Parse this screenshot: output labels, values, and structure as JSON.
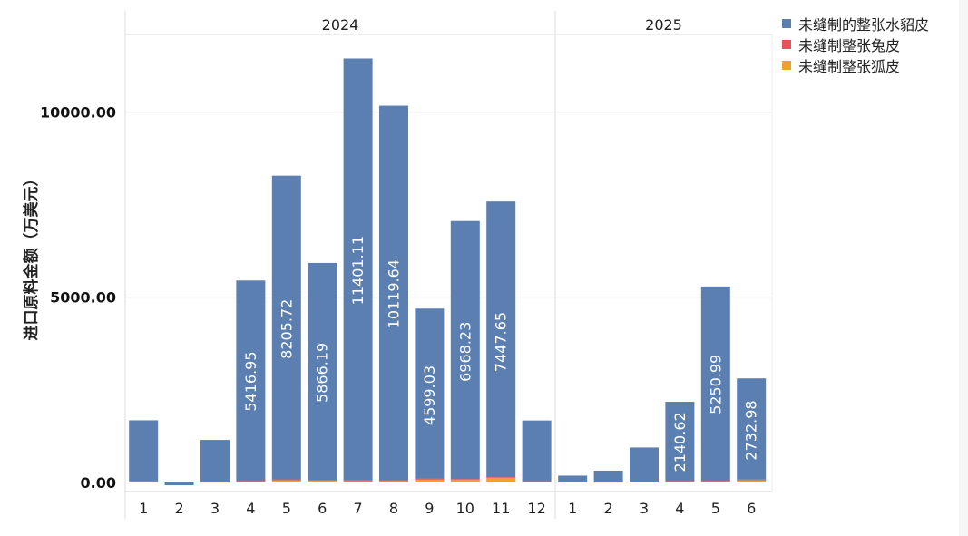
{
  "chart_data": {
    "type": "bar",
    "stacked": true,
    "ylabel": "进口原料金额（万美元）",
    "y_ticks": [
      "10000.00",
      "5000.00",
      "0.00"
    ],
    "y_tick_values": [
      10000,
      5000,
      0
    ],
    "ylim": [
      -250,
      12100
    ],
    "grid": true,
    "legend_position": "top-right",
    "groups": [
      {
        "label": "2024",
        "categories": [
          "1",
          "2",
          "3",
          "4",
          "5",
          "6",
          "7",
          "8",
          "9",
          "10",
          "11",
          "12"
        ]
      },
      {
        "label": "2025",
        "categories": [
          "1",
          "2",
          "3",
          "4",
          "5",
          "6"
        ]
      }
    ],
    "series": [
      {
        "name": "未缝制的整张水貂皮",
        "color": "#5b7fb1",
        "values": [
          1650,
          -80,
          1130,
          5416.95,
          8205.72,
          5866.19,
          11401.11,
          10119.64,
          4599.03,
          6968.23,
          7447.65,
          1640,
          160,
          300,
          920,
          2140.62,
          5250.99,
          2732.98
        ],
        "labels": [
          "",
          "",
          "",
          "5416.95",
          "8205.72",
          "5866.19",
          "11401.11",
          "10119.64",
          "4599.03",
          "6968.23",
          "7447.65",
          "",
          "",
          "",
          "",
          "2140.62",
          "5250.99",
          "2732.98"
        ]
      },
      {
        "name": "未缝制整张兔皮",
        "color": "#e15759",
        "values": [
          5,
          2,
          5,
          15,
          25,
          20,
          25,
          20,
          15,
          20,
          20,
          10,
          5,
          5,
          5,
          10,
          10,
          15
        ]
      },
      {
        "name": "未缝制整张狐皮",
        "color": "#f0a030",
        "values": [
          20,
          0,
          10,
          20,
          55,
          40,
          25,
          35,
          80,
          70,
          120,
          20,
          15,
          10,
          15,
          25,
          30,
          60
        ]
      }
    ]
  }
}
